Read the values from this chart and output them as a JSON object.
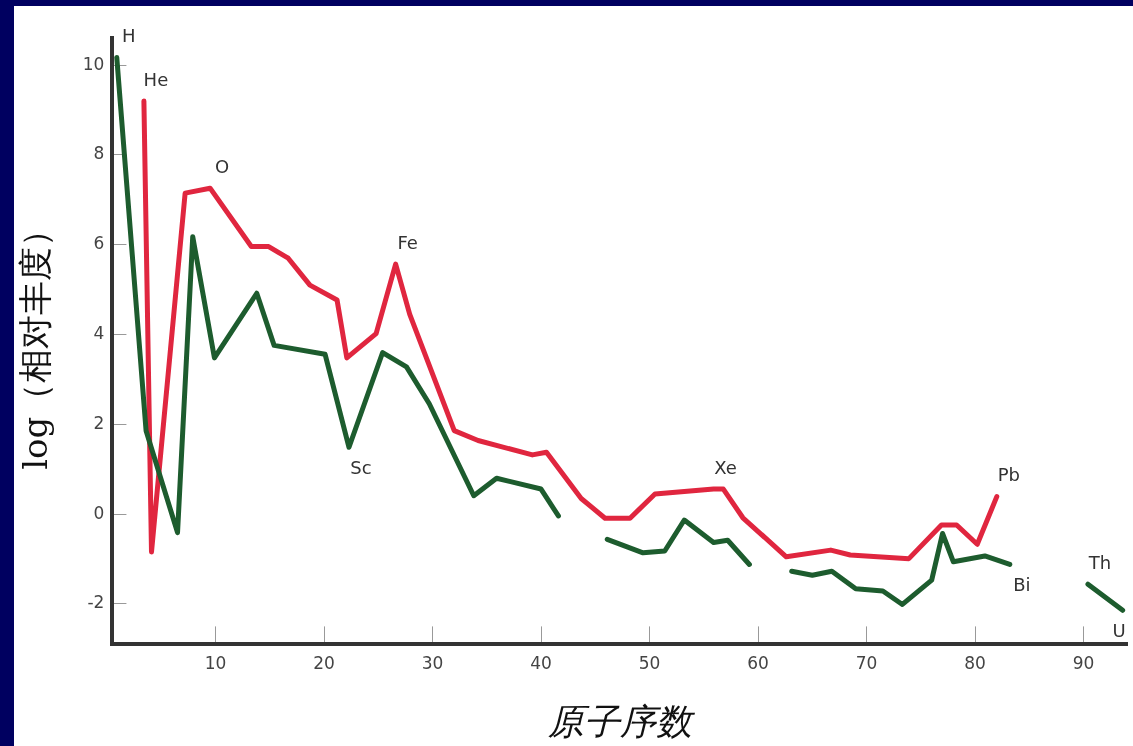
{
  "chart_data": {
    "type": "line",
    "xlabel": "原子序数",
    "ylabel": "log（相对丰度）",
    "xlim": [
      0.5,
      94
    ],
    "ylim": [
      -2.9,
      10.6
    ],
    "xticks": [
      10,
      20,
      30,
      40,
      50,
      60,
      70,
      80,
      90
    ],
    "yticks": [
      -2,
      0,
      2,
      4,
      6,
      8,
      10
    ],
    "grid": false,
    "legend": false,
    "marker": "none",
    "line_style": "solid",
    "series": [
      {
        "color": "#1d5c2e",
        "x": [
          0.9,
          3.6,
          6.5,
          7.9,
          9.9,
          13.8,
          15.4,
          20.1,
          22.3,
          25.4,
          27.6,
          29.7,
          33.8,
          35.9,
          40.0,
          41.6,
          44,
          46.1,
          49.4,
          51.4,
          53.2,
          55.9,
          57.2,
          59.2,
          61,
          63.1,
          65.0,
          66.8,
          69.0,
          71.5,
          73.3,
          76.0,
          77.0,
          78.0,
          80.9,
          83.2,
          87,
          90.4,
          93.6
        ],
        "values": [
          10.17,
          1.86,
          -0.41,
          6.18,
          3.48,
          4.92,
          3.76,
          3.56,
          1.49,
          3.6,
          3.28,
          2.46,
          0.41,
          0.8,
          0.56,
          -0.04,
          null,
          -0.56,
          -0.86,
          -0.82,
          -0.13,
          -0.63,
          -0.58,
          -1.12,
          null,
          -1.27,
          -1.36,
          -1.27,
          -1.66,
          -1.71,
          -2.01,
          -1.47,
          -0.43,
          -1.06,
          -0.93,
          -1.12,
          null,
          -1.56,
          -2.14
        ]
      },
      {
        "color": "#e0263f",
        "x": [
          3.4,
          4.1,
          7.2,
          9.5,
          13.3,
          14.9,
          16.7,
          18.7,
          21.2,
          22.1,
          24.8,
          26.6,
          27.9,
          32.0,
          34.2,
          39.2,
          40.5,
          43.7,
          45.9,
          48.2,
          50.5,
          55.9,
          56.8,
          58.6,
          62.6,
          66.7,
          68.5,
          73.9,
          76.9,
          78.3,
          80.2,
          82.0
        ],
        "values": [
          9.2,
          -0.84,
          7.15,
          7.26,
          5.96,
          5.96,
          5.7,
          5.1,
          4.77,
          3.48,
          4.02,
          5.57,
          4.45,
          1.86,
          1.64,
          1.32,
          1.38,
          0.35,
          -0.09,
          -0.09,
          0.45,
          0.56,
          0.56,
          -0.08,
          -0.95,
          -0.8,
          -0.91,
          -0.99,
          -0.24,
          -0.24,
          -0.67,
          0.39
        ]
      }
    ],
    "annotations": [
      {
        "text": "H",
        "x": 0.9,
        "y": 10.17
      },
      {
        "text": "He",
        "x": 3.4,
        "y": 9.2
      },
      {
        "text": "O",
        "x": 9.5,
        "y": 7.26
      },
      {
        "text": "Fe",
        "x": 26.6,
        "y": 5.57
      },
      {
        "text": "Sc",
        "x": 22.3,
        "y": 1.49
      },
      {
        "text": "Xe",
        "x": 55.9,
        "y": 0.56
      },
      {
        "text": "Pb",
        "x": 82.0,
        "y": 0.39
      },
      {
        "text": "Bi",
        "x": 83.2,
        "y": -1.12
      },
      {
        "text": "Th",
        "x": 90.4,
        "y": -1.56
      },
      {
        "text": "U",
        "x": 93.6,
        "y": -2.14
      }
    ]
  }
}
